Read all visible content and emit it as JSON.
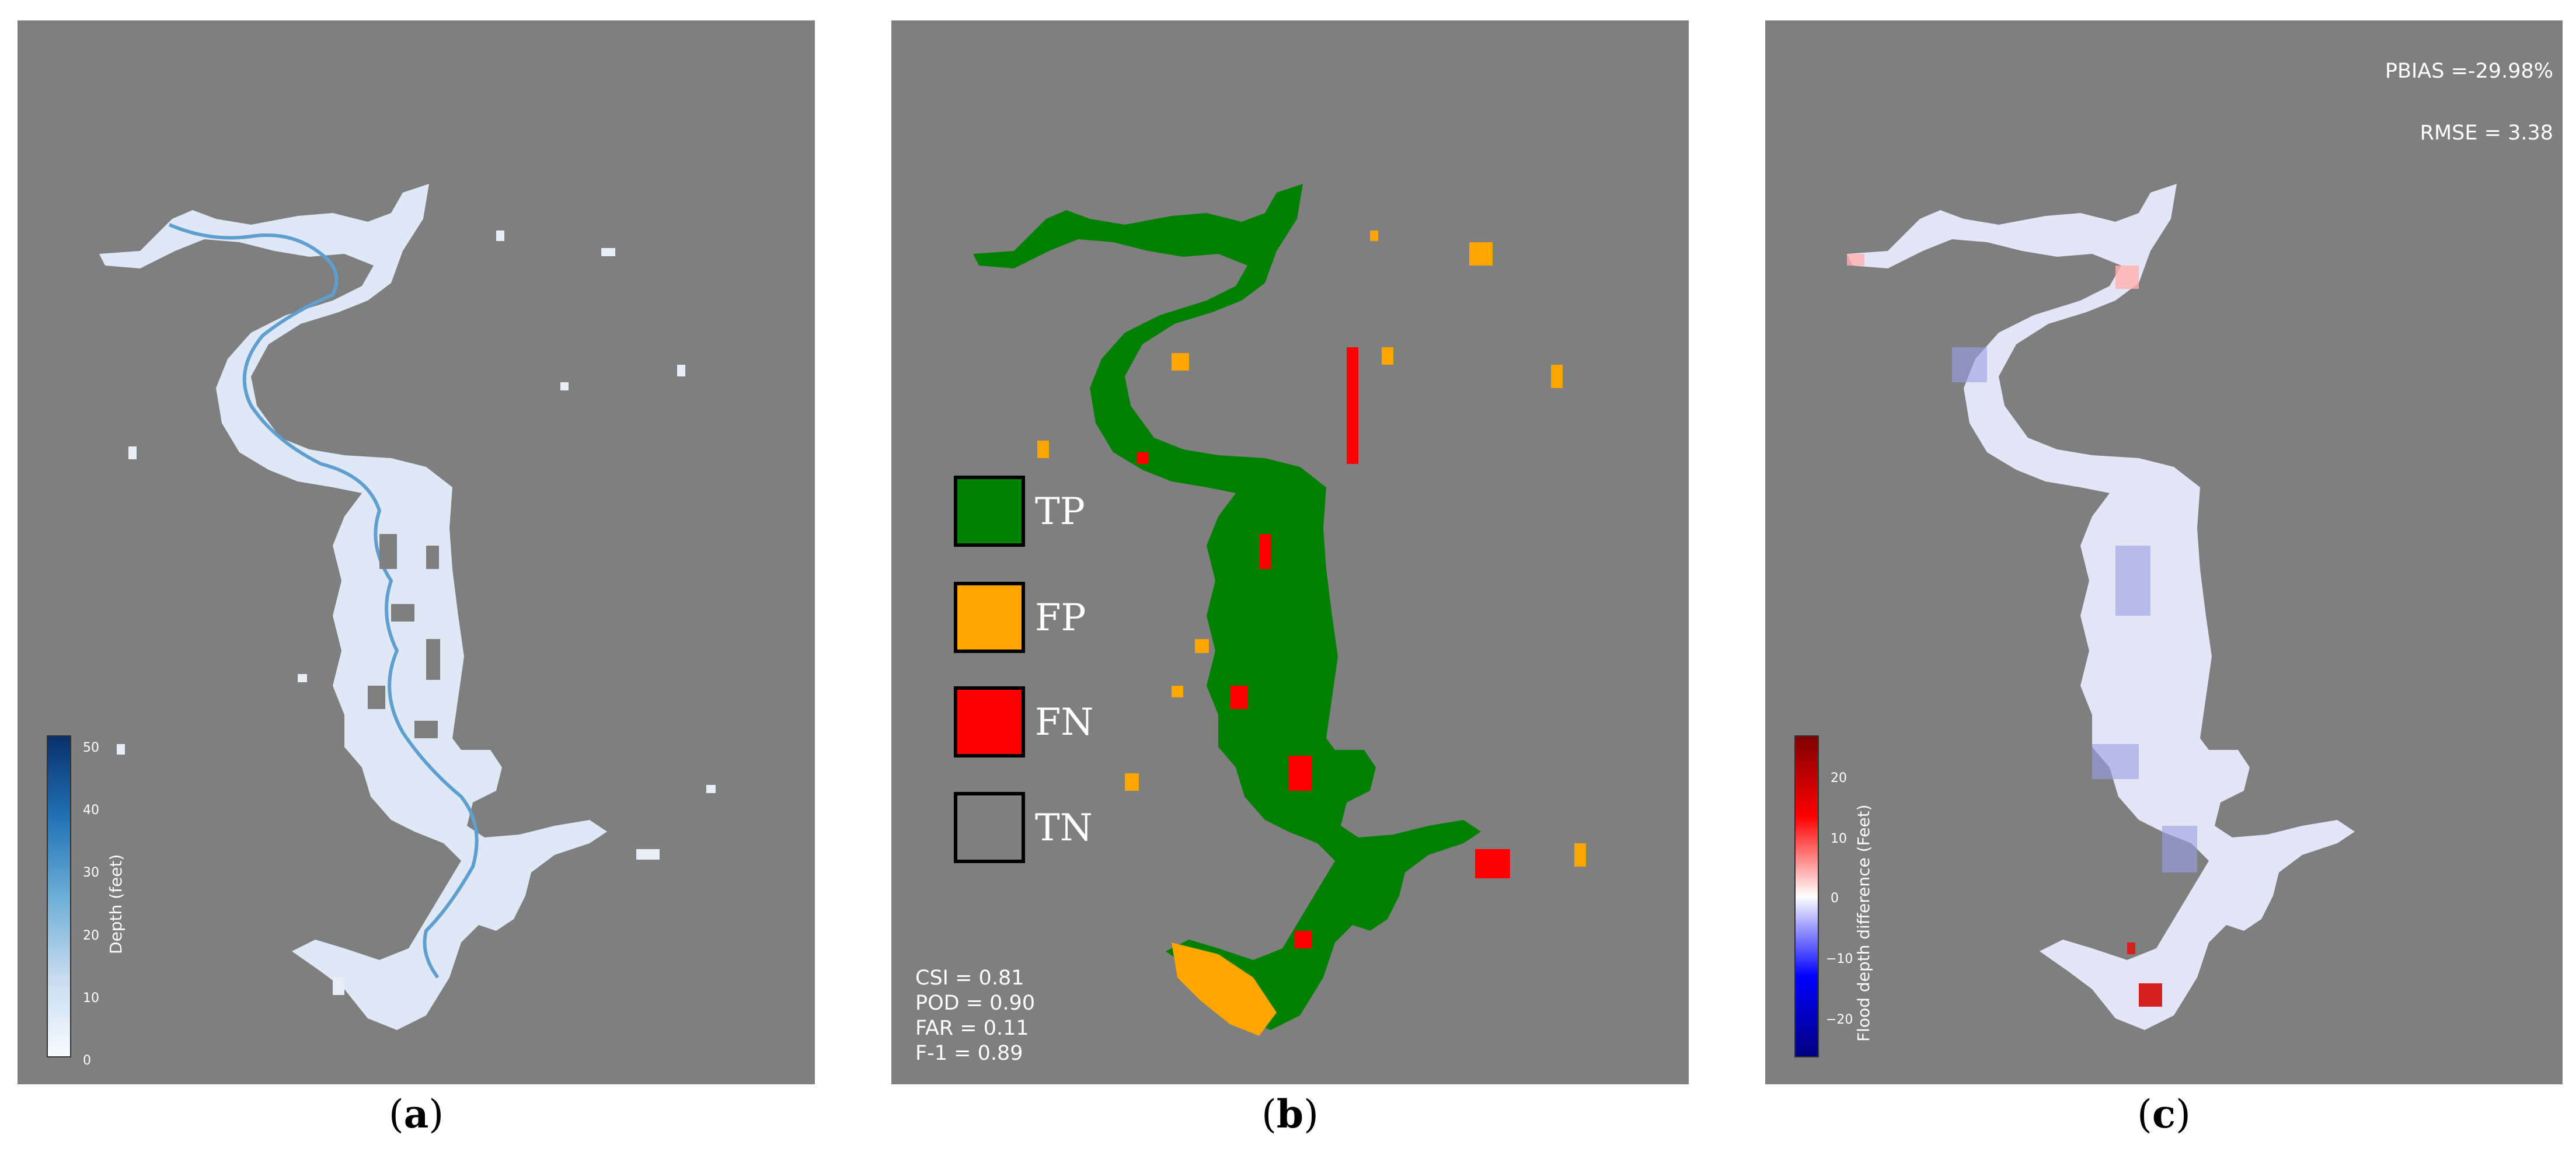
{
  "panels": [
    {
      "id": "a",
      "caption_open": "(",
      "caption_letter": "a",
      "caption_close": ")",
      "colorbar": {
        "label": "Depth (feet)",
        "ticks": [
          "50",
          "40",
          "30",
          "20",
          "10",
          "0"
        ],
        "color_low": "#f7fbff",
        "color_high": "#08306b"
      }
    },
    {
      "id": "b",
      "caption_open": "(",
      "caption_letter": "b",
      "caption_close": ")",
      "legend": [
        {
          "label": "TP",
          "color": "#008000"
        },
        {
          "label": "FP",
          "color": "#ffa500"
        },
        {
          "label": "FN",
          "color": "#ff0000"
        },
        {
          "label": "TN",
          "color": "#7f7f7f"
        }
      ],
      "metrics": [
        "CSI = 0.81",
        "POD = 0.90",
        "FAR = 0.11",
        "F-1 = 0.89"
      ]
    },
    {
      "id": "c",
      "caption_open": "(",
      "caption_letter": "c",
      "caption_close": ")",
      "stats": [
        "PBIAS =-29.98%",
        "RMSE = 3.38"
      ],
      "colorbar": {
        "label": "Flood depth difference (Feet)",
        "ticks": [
          "20",
          "10",
          "0",
          "−10",
          "−20"
        ],
        "color_low": "#00007f",
        "color_mid": "#ffffff",
        "color_high": "#7f0000"
      }
    }
  ],
  "colors": {
    "background": "#7f7f7f",
    "depth_fill": "#dfe9f5",
    "channel": "#5f9fd0",
    "diff_fill": "#e4e6f8"
  }
}
